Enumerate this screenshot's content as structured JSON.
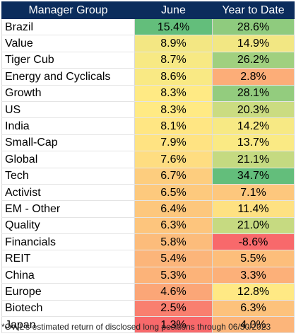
{
  "chart_data": {
    "type": "table",
    "columns": [
      "Manager Group",
      "June",
      "Year to Date"
    ],
    "rows": [
      {
        "group": "Brazil",
        "june": "15.4%",
        "ytd": "28.6%",
        "june_value": 15.4,
        "ytd_value": 28.6
      },
      {
        "group": "Value",
        "june": "8.9%",
        "ytd": "14.9%",
        "june_value": 8.9,
        "ytd_value": 14.9
      },
      {
        "group": "Tiger Cub",
        "june": "8.7%",
        "ytd": "26.2%",
        "june_value": 8.7,
        "ytd_value": 26.2
      },
      {
        "group": "Energy and Cyclicals",
        "june": "8.6%",
        "ytd": "2.8%",
        "june_value": 8.6,
        "ytd_value": 2.8
      },
      {
        "group": "Growth",
        "june": "8.3%",
        "ytd": "28.1%",
        "june_value": 8.3,
        "ytd_value": 28.1
      },
      {
        "group": "US",
        "june": "8.3%",
        "ytd": "20.3%",
        "june_value": 8.3,
        "ytd_value": 20.3
      },
      {
        "group": "India",
        "june": "8.1%",
        "ytd": "14.2%",
        "june_value": 8.1,
        "ytd_value": 14.2
      },
      {
        "group": "Small-Cap",
        "june": "7.9%",
        "ytd": "13.7%",
        "june_value": 7.9,
        "ytd_value": 13.7
      },
      {
        "group": "Global",
        "june": "7.6%",
        "ytd": "21.1%",
        "june_value": 7.6,
        "ytd_value": 21.1
      },
      {
        "group": "Tech",
        "june": "6.7%",
        "ytd": "34.7%",
        "june_value": 6.7,
        "ytd_value": 34.7
      },
      {
        "group": "Activist",
        "june": "6.5%",
        "ytd": "7.1%",
        "june_value": 6.5,
        "ytd_value": 7.1
      },
      {
        "group": "EM - Other",
        "june": "6.4%",
        "ytd": "11.4%",
        "june_value": 6.4,
        "ytd_value": 11.4
      },
      {
        "group": "Quality",
        "june": "6.3%",
        "ytd": "21.0%",
        "june_value": 6.3,
        "ytd_value": 21.0
      },
      {
        "group": "Financials",
        "june": "5.8%",
        "ytd": "-8.6%",
        "june_value": 5.8,
        "ytd_value": -8.6
      },
      {
        "group": "REIT",
        "june": "5.4%",
        "ytd": "5.5%",
        "june_value": 5.4,
        "ytd_value": 5.5
      },
      {
        "group": "China",
        "june": "5.3%",
        "ytd": "3.3%",
        "june_value": 5.3,
        "ytd_value": 3.3
      },
      {
        "group": "Europe",
        "june": "4.6%",
        "ytd": "12.8%",
        "june_value": 4.6,
        "ytd_value": 12.8
      },
      {
        "group": "Biotech",
        "june": "2.5%",
        "ytd": "6.3%",
        "june_value": 2.5,
        "ytd_value": 6.3
      },
      {
        "group": "Japan",
        "june": "1.3%",
        "ytd": "4.0%",
        "june_value": 1.3,
        "ytd_value": 4.0
      }
    ],
    "color_scale": {
      "low": "#f8696b",
      "mid": "#ffeb84",
      "high": "#63be7b"
    },
    "header_color": "#0b2c5c",
    "footnote": "*OWL's estimated return of disclosed long positions through 06/30/2023"
  }
}
